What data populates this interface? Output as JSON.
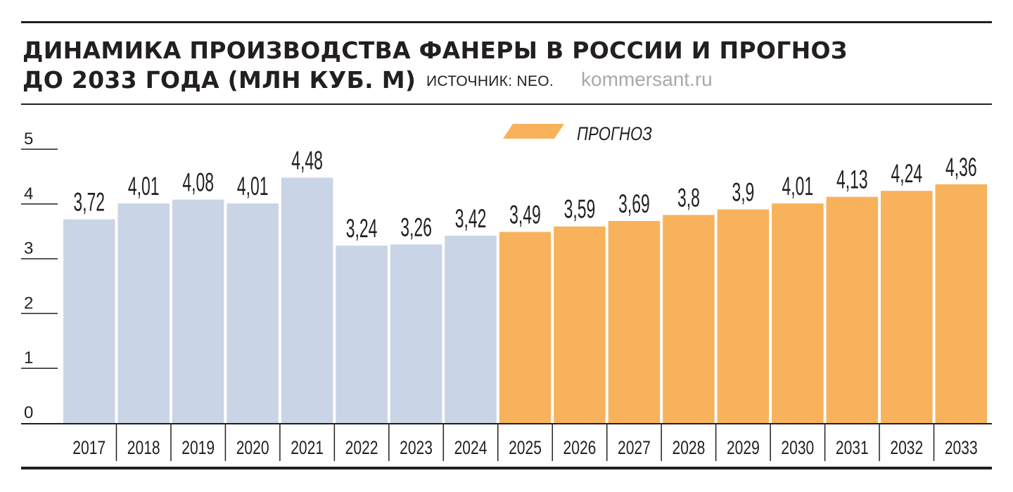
{
  "title_line1": "ДИНАМИКА ПРОИЗВОДСТВА ФАНЕРЫ В РОССИИ И ПРОГНОЗ",
  "title_line2": "ДО 2033 ГОДА (МЛН КУБ. М)",
  "source": "ИСТОЧНИК: NEO.",
  "site": "kommersant.ru",
  "colors": {
    "actual": "#c9d5e6",
    "forecast": "#f8b25c",
    "ink": "#231f20",
    "site": "#a7a9ac"
  },
  "chart_data": {
    "type": "bar",
    "categories": [
      "2017",
      "2018",
      "2019",
      "2020",
      "2021",
      "2022",
      "2023",
      "2024",
      "2025",
      "2026",
      "2027",
      "2028",
      "2029",
      "2030",
      "2031",
      "2032",
      "2033"
    ],
    "values": [
      3.72,
      4.01,
      4.08,
      4.01,
      4.48,
      3.24,
      3.26,
      3.42,
      3.49,
      3.59,
      3.69,
      3.8,
      3.9,
      4.01,
      4.13,
      4.24,
      4.36
    ],
    "value_labels": [
      "3,72",
      "4,01",
      "4,08",
      "4,01",
      "4,48",
      "3,24",
      "3,26",
      "3,42",
      "3,49",
      "3,59",
      "3,69",
      "3,8",
      "3,9",
      "4,01",
      "4,13",
      "4,24",
      "4,36"
    ],
    "forecast_from_index": 8,
    "legend": [
      "ПРОГНОЗ"
    ],
    "legend_position": "top-center",
    "yticks": [
      "0",
      "1",
      "2",
      "3",
      "4",
      "5"
    ],
    "ylim": [
      0,
      5
    ],
    "grid": false
  }
}
